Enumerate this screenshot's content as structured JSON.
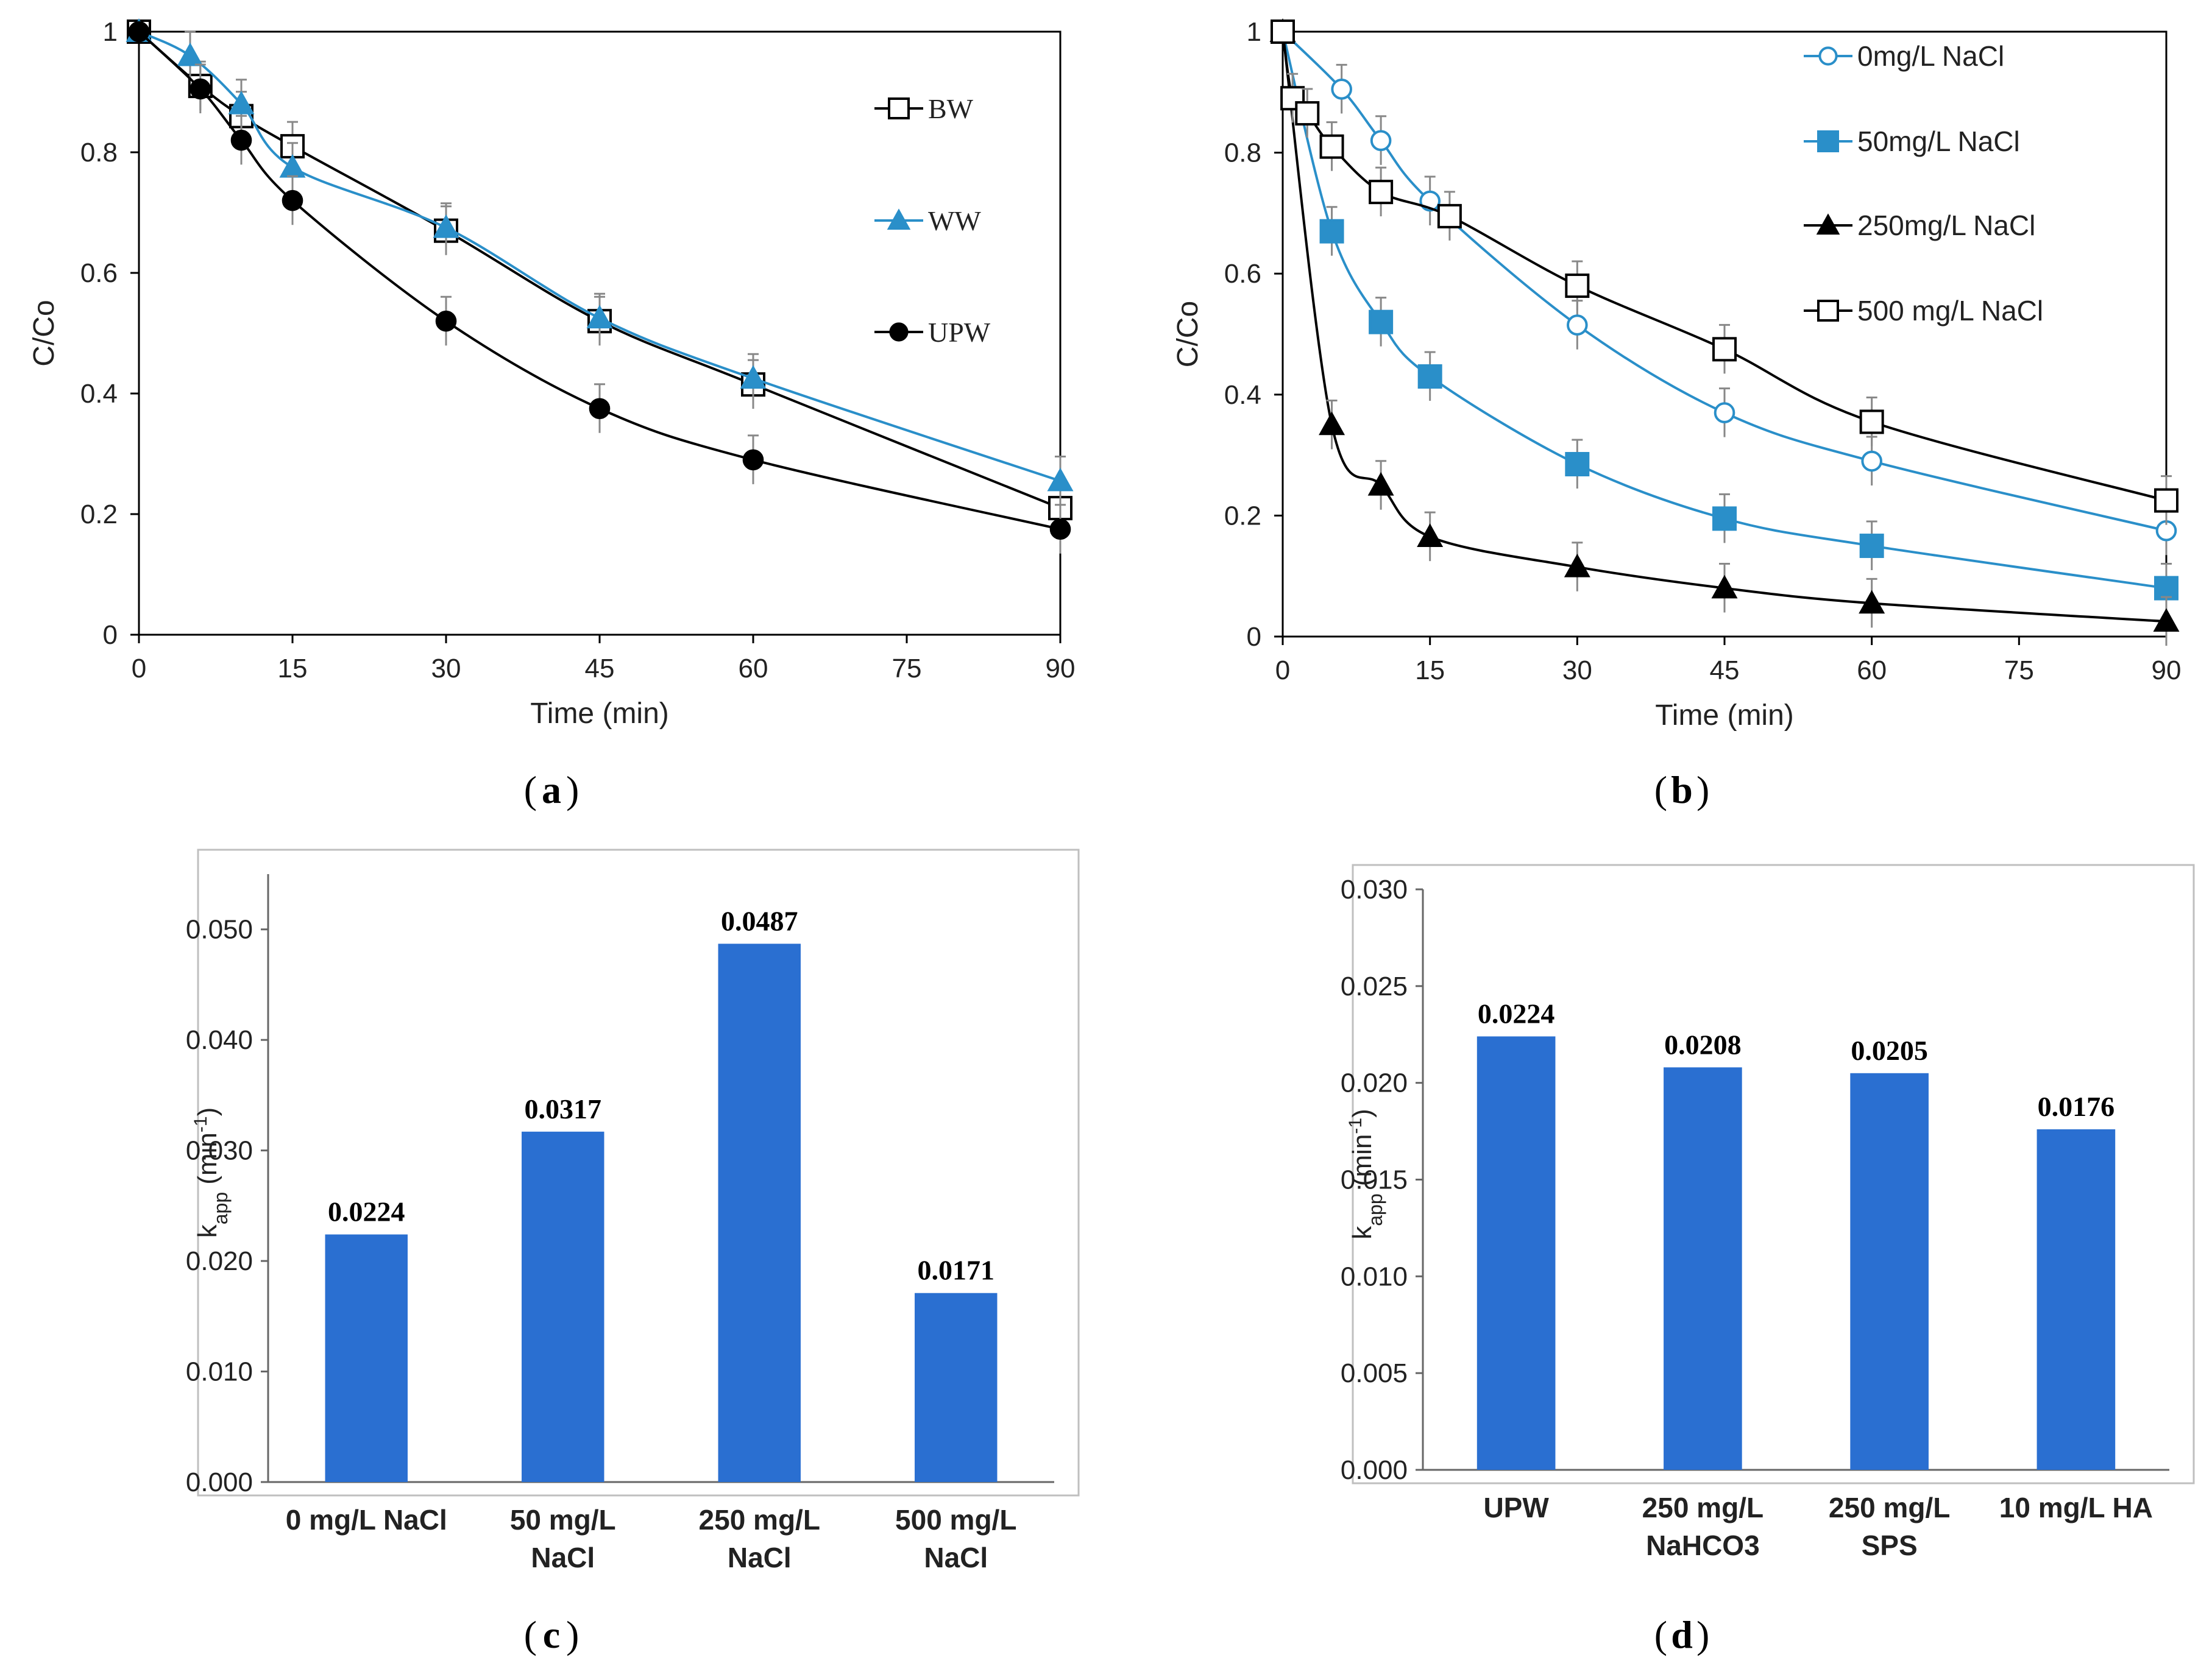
{
  "colors": {
    "blue": "#2a8fc9",
    "bar": "#2a6fd1",
    "black": "#000000",
    "grid": "#000000"
  },
  "chart_data": [
    {
      "id": "a",
      "type": "line",
      "panel_label": "a",
      "xlabel": "Time (min)",
      "ylabel": "C/Co",
      "xlim": [
        0,
        90
      ],
      "ylim": [
        0,
        1
      ],
      "xticks": [
        0,
        15,
        30,
        45,
        60,
        75,
        90
      ],
      "yticks": [
        0,
        0.2,
        0.4,
        0.6,
        0.8,
        1
      ],
      "legend_position": "right",
      "series": [
        {
          "name": "BW",
          "marker": "square-open",
          "color": "#000000",
          "x": [
            0,
            6,
            10,
            15,
            30,
            45,
            60,
            90
          ],
          "y": [
            1,
            0.91,
            0.86,
            0.81,
            0.67,
            0.52,
            0.415,
            0.21
          ]
        },
        {
          "name": "WW",
          "marker": "triangle",
          "color": "#2a8fc9",
          "x": [
            0,
            5,
            10,
            15,
            30,
            45,
            60,
            90
          ],
          "y": [
            1,
            0.96,
            0.88,
            0.775,
            0.675,
            0.525,
            0.425,
            0.255
          ]
        },
        {
          "name": "UPW",
          "marker": "circle",
          "color": "#000000",
          "x": [
            0,
            6,
            10,
            15,
            30,
            45,
            60,
            90
          ],
          "y": [
            1,
            0.905,
            0.82,
            0.72,
            0.52,
            0.375,
            0.29,
            0.175
          ]
        }
      ]
    },
    {
      "id": "b",
      "type": "line",
      "panel_label": "b",
      "xlabel": "Time (min)",
      "ylabel": "C/Co",
      "xlim": [
        0,
        90
      ],
      "ylim": [
        0,
        1
      ],
      "xticks": [
        0,
        15,
        30,
        45,
        60,
        75,
        90
      ],
      "yticks": [
        0,
        0.2,
        0.4,
        0.6,
        0.8,
        1
      ],
      "legend_position": "top-right",
      "series": [
        {
          "name": "0mg/L NaCl",
          "marker": "circle-open",
          "color": "#2a8fc9",
          "x": [
            0,
            6,
            10,
            15,
            30,
            45,
            60,
            90
          ],
          "y": [
            1,
            0.905,
            0.82,
            0.72,
            0.515,
            0.37,
            0.29,
            0.175
          ]
        },
        {
          "name": "50mg/L NaCl",
          "marker": "square",
          "color": "#2a8fc9",
          "x": [
            0,
            5,
            10,
            15,
            30,
            45,
            60,
            90
          ],
          "y": [
            1,
            0.67,
            0.52,
            0.43,
            0.285,
            0.195,
            0.15,
            0.08
          ]
        },
        {
          "name": "250mg/L NaCl",
          "marker": "triangle",
          "color": "#000000",
          "x": [
            0,
            5,
            10,
            15,
            30,
            45,
            60,
            90
          ],
          "y": [
            1,
            0.35,
            0.25,
            0.165,
            0.115,
            0.08,
            0.055,
            0.025
          ]
        },
        {
          "name": "500 mg/L NaCl",
          "marker": "square-open",
          "color": "#000000",
          "x": [
            0,
            1,
            2.5,
            5,
            10,
            17,
            30,
            45,
            60,
            90
          ],
          "y": [
            1,
            0.89,
            0.865,
            0.81,
            0.735,
            0.695,
            0.58,
            0.475,
            0.355,
            0.225
          ]
        }
      ]
    },
    {
      "id": "c",
      "type": "bar",
      "panel_label": "c",
      "ylabel": "k",
      "ylabel_sub": "app",
      "ylabel_unit": " (min",
      "ylabel_sup": "-1",
      "ylabel_close": ")",
      "ylim": [
        0,
        0.055
      ],
      "yticks": [
        "0.000",
        "0.010",
        "0.020",
        "0.030",
        "0.040",
        "0.050"
      ],
      "categories": [
        [
          "0 mg/L NaCl"
        ],
        [
          "50 mg/L",
          "NaCl"
        ],
        [
          "250 mg/L",
          "NaCl"
        ],
        [
          "500 mg/L",
          "NaCl"
        ]
      ],
      "values": [
        0.0224,
        0.0317,
        0.0487,
        0.0171
      ],
      "data_labels": [
        "0.0224",
        "0.0317",
        "0.0487",
        "0.0171"
      ]
    },
    {
      "id": "d",
      "type": "bar",
      "panel_label": "d",
      "ylabel": "k",
      "ylabel_sub": "app",
      "ylabel_unit": " (min",
      "ylabel_sup": "-1",
      "ylabel_close": ")",
      "ylim": [
        0,
        0.03
      ],
      "yticks": [
        "0.000",
        "0.005",
        "0.010",
        "0.015",
        "0.020",
        "0.025",
        "0.030"
      ],
      "categories": [
        [
          "UPW"
        ],
        [
          "250 mg/L",
          "NaHCO3"
        ],
        [
          "250 mg/L",
          "SPS"
        ],
        [
          "10 mg/L HA"
        ]
      ],
      "values": [
        0.0224,
        0.0208,
        0.0205,
        0.0176
      ],
      "data_labels": [
        "0.0224",
        "0.0208",
        "0.0205",
        "0.0176"
      ]
    }
  ]
}
